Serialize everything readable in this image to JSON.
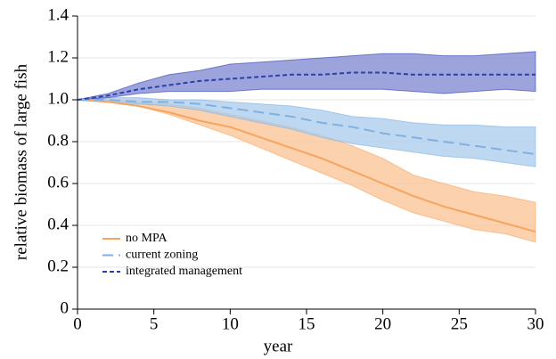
{
  "chart_data": {
    "type": "line-band",
    "xlabel": "year",
    "ylabel": "relative biomass of large fish",
    "x": [
      0,
      2,
      4,
      6,
      8,
      10,
      12,
      14,
      16,
      18,
      20,
      22,
      24,
      26,
      28,
      30
    ],
    "xlim": [
      0,
      30
    ],
    "xticks": [
      0,
      5,
      10,
      15,
      20,
      25,
      30
    ],
    "ylim": [
      0,
      1.4
    ],
    "yticks": [
      0,
      0.2,
      0.4,
      0.6,
      0.8,
      {
        "value": 1,
        "label": "1.0"
      },
      1.2,
      1.4
    ],
    "grid": true,
    "legend": "lower left",
    "series": [
      {
        "name": "no MPA",
        "color": "#f5a55f",
        "band_color": "#f9c293",
        "dash": "solid",
        "values": [
          1.0,
          0.99,
          0.97,
          0.94,
          0.9,
          0.87,
          0.82,
          0.77,
          0.72,
          0.66,
          0.6,
          0.54,
          0.49,
          0.45,
          0.41,
          0.37
        ],
        "upper": [
          1.0,
          1.0,
          0.99,
          0.98,
          0.96,
          0.93,
          0.9,
          0.87,
          0.83,
          0.78,
          0.72,
          0.64,
          0.6,
          0.56,
          0.54,
          0.51
        ],
        "lower": [
          1.0,
          0.99,
          0.97,
          0.93,
          0.88,
          0.83,
          0.77,
          0.71,
          0.65,
          0.59,
          0.52,
          0.46,
          0.42,
          0.38,
          0.36,
          0.32
        ]
      },
      {
        "name": "current zoning",
        "color": "#7fb0e0",
        "band_color": "#a9cbee",
        "dash": "long",
        "values": [
          1.0,
          1.0,
          0.99,
          0.99,
          0.98,
          0.96,
          0.94,
          0.92,
          0.89,
          0.87,
          0.84,
          0.82,
          0.8,
          0.78,
          0.76,
          0.74
        ],
        "upper": [
          1.0,
          1.01,
          1.01,
          1.0,
          1.0,
          0.99,
          0.98,
          0.97,
          0.95,
          0.92,
          0.91,
          0.89,
          0.88,
          0.88,
          0.87,
          0.87
        ],
        "lower": [
          1.0,
          0.99,
          0.98,
          0.97,
          0.95,
          0.92,
          0.89,
          0.86,
          0.82,
          0.79,
          0.77,
          0.75,
          0.73,
          0.72,
          0.7,
          0.68
        ]
      },
      {
        "name": "integrated management",
        "color": "#2a3fb0",
        "band_color": "#7c86cf",
        "dash": "short",
        "values": [
          1.0,
          1.02,
          1.05,
          1.07,
          1.09,
          1.1,
          1.11,
          1.12,
          1.12,
          1.13,
          1.13,
          1.12,
          1.12,
          1.12,
          1.12,
          1.12
        ],
        "upper": [
          1.0,
          1.03,
          1.08,
          1.12,
          1.14,
          1.17,
          1.18,
          1.19,
          1.2,
          1.21,
          1.22,
          1.22,
          1.21,
          1.21,
          1.22,
          1.23
        ],
        "lower": [
          1.0,
          1.01,
          1.03,
          1.04,
          1.04,
          1.04,
          1.05,
          1.05,
          1.05,
          1.05,
          1.05,
          1.04,
          1.03,
          1.04,
          1.05,
          1.04
        ]
      }
    ]
  }
}
